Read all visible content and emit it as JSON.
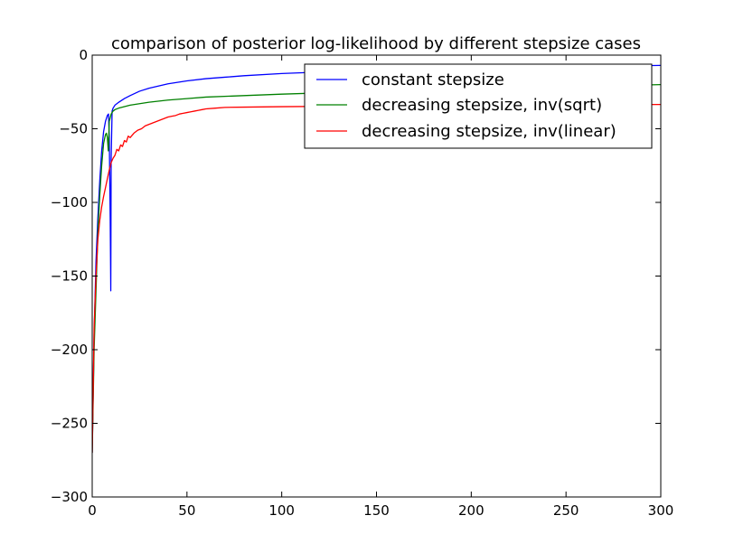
{
  "chart_data": {
    "type": "line",
    "title": "comparison of posterior log-likelihood by different stepsize cases",
    "xlabel": "",
    "ylabel": "",
    "xlim": [
      0,
      300
    ],
    "ylim": [
      -300,
      0
    ],
    "xticks": [
      0,
      50,
      100,
      150,
      200,
      250,
      300
    ],
    "yticks": [
      0,
      -50,
      -100,
      -150,
      -200,
      -250,
      -300
    ],
    "grid": false,
    "legend_position": "top-right",
    "series": [
      {
        "name": "constant stepsize",
        "color": "#0000ff",
        "points": [
          [
            0,
            -270
          ],
          [
            1,
            -190
          ],
          [
            2,
            -140
          ],
          [
            3,
            -110
          ],
          [
            4,
            -85
          ],
          [
            5,
            -65
          ],
          [
            6,
            -52
          ],
          [
            7,
            -45
          ],
          [
            8,
            -41
          ],
          [
            8.6,
            -40
          ],
          [
            9,
            -55
          ],
          [
            9.5,
            -110
          ],
          [
            9.8,
            -160
          ],
          [
            10,
            -70
          ],
          [
            10.5,
            -38
          ],
          [
            11,
            -36
          ],
          [
            12,
            -34
          ],
          [
            14,
            -32
          ],
          [
            17,
            -29.5
          ],
          [
            20,
            -27.5
          ],
          [
            25,
            -24.5
          ],
          [
            30,
            -22.5
          ],
          [
            40,
            -19.5
          ],
          [
            50,
            -17.5
          ],
          [
            60,
            -16
          ],
          [
            70,
            -15
          ],
          [
            80,
            -14
          ],
          [
            100,
            -12.5
          ],
          [
            120,
            -11.5
          ],
          [
            150,
            -10.5
          ],
          [
            200,
            -9
          ],
          [
            250,
            -8
          ],
          [
            300,
            -7
          ]
        ]
      },
      {
        "name": "decreasing stepsize, inv(sqrt)",
        "color": "#008000",
        "points": [
          [
            0,
            -270
          ],
          [
            1,
            -200
          ],
          [
            2,
            -160
          ],
          [
            3,
            -120
          ],
          [
            4,
            -95
          ],
          [
            5,
            -75
          ],
          [
            6,
            -60
          ],
          [
            7,
            -54
          ],
          [
            7.5,
            -53
          ],
          [
            8,
            -56
          ],
          [
            8.5,
            -65
          ],
          [
            9,
            -45
          ],
          [
            10,
            -40
          ],
          [
            11,
            -38
          ],
          [
            12,
            -37
          ],
          [
            14,
            -36
          ],
          [
            17,
            -35
          ],
          [
            20,
            -34
          ],
          [
            30,
            -32
          ],
          [
            40,
            -30.5
          ],
          [
            50,
            -29.5
          ],
          [
            60,
            -28.5
          ],
          [
            80,
            -27.5
          ],
          [
            100,
            -26.5
          ],
          [
            150,
            -24.5
          ],
          [
            200,
            -23
          ],
          [
            250,
            -21.5
          ],
          [
            300,
            -20
          ]
        ]
      },
      {
        "name": "decreasing stepsize, inv(linear)",
        "color": "#ff0000",
        "points": [
          [
            0,
            -270
          ],
          [
            1,
            -185
          ],
          [
            2,
            -150
          ],
          [
            3,
            -125
          ],
          [
            4,
            -112
          ],
          [
            5,
            -103
          ],
          [
            6,
            -96
          ],
          [
            7,
            -90
          ],
          [
            8,
            -84
          ],
          [
            9,
            -78
          ],
          [
            10,
            -73
          ],
          [
            11,
            -70
          ],
          [
            12,
            -68
          ],
          [
            13,
            -64
          ],
          [
            14,
            -65
          ],
          [
            15,
            -61
          ],
          [
            16,
            -62
          ],
          [
            17,
            -58
          ],
          [
            18,
            -59
          ],
          [
            19,
            -55
          ],
          [
            20,
            -56
          ],
          [
            22,
            -53
          ],
          [
            24,
            -51
          ],
          [
            26,
            -50
          ],
          [
            28,
            -48
          ],
          [
            30,
            -47
          ],
          [
            32,
            -46
          ],
          [
            34,
            -45
          ],
          [
            36,
            -44
          ],
          [
            38,
            -43
          ],
          [
            40,
            -42
          ],
          [
            42,
            -41.5
          ],
          [
            44,
            -41
          ],
          [
            46,
            -40
          ],
          [
            48,
            -39.5
          ],
          [
            50,
            -39
          ],
          [
            52,
            -38.5
          ],
          [
            54,
            -38
          ],
          [
            56,
            -37.5
          ],
          [
            58,
            -37
          ],
          [
            60,
            -36.5
          ],
          [
            65,
            -36
          ],
          [
            70,
            -35.5
          ],
          [
            80,
            -35.3
          ],
          [
            100,
            -35
          ],
          [
            150,
            -34.5
          ],
          [
            200,
            -34
          ],
          [
            250,
            -33.8
          ],
          [
            300,
            -33.5
          ]
        ]
      }
    ]
  }
}
